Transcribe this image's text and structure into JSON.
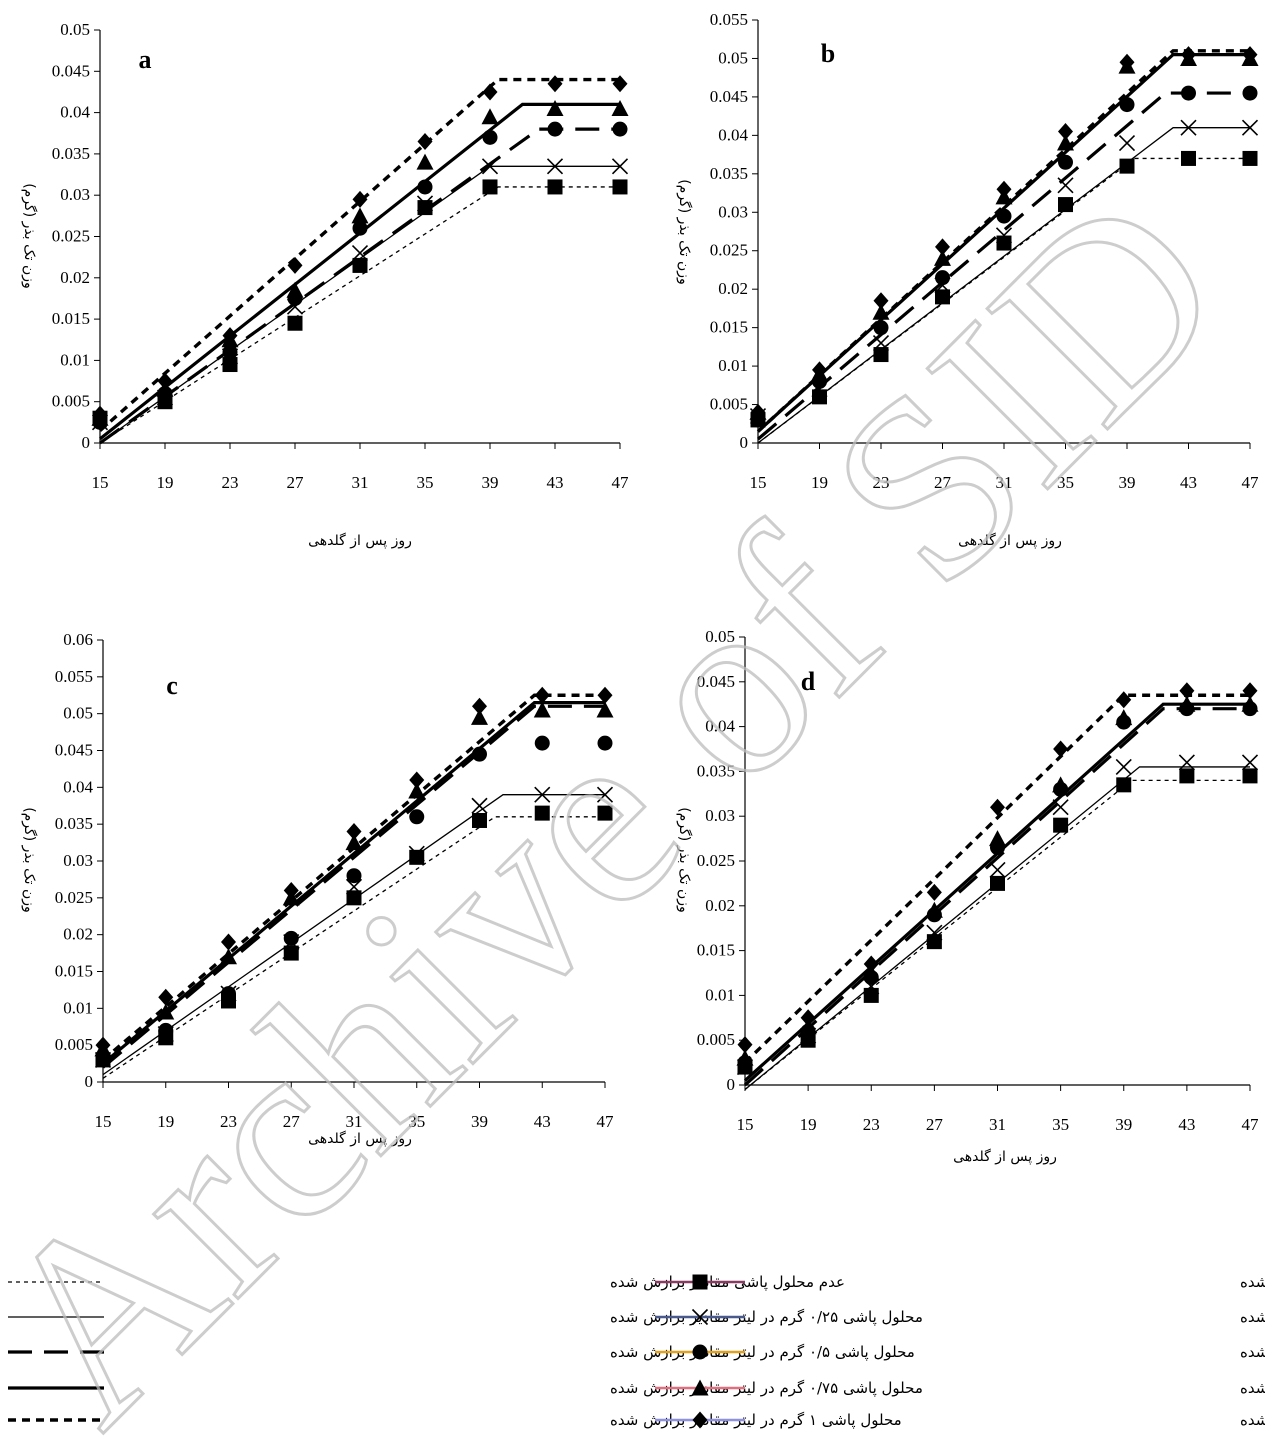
{
  "chart_data": [
    {
      "type": "line",
      "panel": "a",
      "ylim": [
        0,
        0.05
      ],
      "yticks": [
        "0",
        "0.005",
        "0.01",
        "0.015",
        "0.02",
        "0.025",
        "0.03",
        "0.035",
        "0.04",
        "0.045",
        "0.05"
      ],
      "x": [
        15,
        19,
        23,
        27,
        31,
        35,
        39,
        43,
        47
      ],
      "xticks": [
        "15",
        "19",
        "23",
        "27",
        "31",
        "35",
        "39",
        "43",
        "47"
      ],
      "xlabel": "روز پس از گلدهی",
      "ylabel": "وزن تک بذر (گرم)",
      "observed": [
        {
          "treatment": 0,
          "y": [
            0.003,
            0.005,
            0.0095,
            0.0145,
            0.0215,
            0.0285,
            0.031,
            0.031,
            0.031
          ]
        },
        {
          "treatment": 0.25,
          "y": [
            0.0025,
            0.0055,
            0.0105,
            0.0165,
            0.023,
            0.029,
            0.0335,
            0.0335,
            0.0335
          ]
        },
        {
          "treatment": 0.5,
          "y": [
            0.0025,
            0.006,
            0.011,
            0.0175,
            0.026,
            0.031,
            0.037,
            0.038,
            0.038
          ]
        },
        {
          "treatment": 0.75,
          "y": [
            0.003,
            0.0065,
            0.0125,
            0.0185,
            0.0275,
            0.034,
            0.0395,
            0.0405,
            0.0405
          ]
        },
        {
          "treatment": 1,
          "y": [
            0.0035,
            0.0075,
            0.013,
            0.0215,
            0.0295,
            0.0365,
            0.0425,
            0.0435,
            0.0435
          ]
        }
      ],
      "fitted": [
        {
          "treatment": 0,
          "x": [
            15,
            39.5,
            47
          ],
          "y": [
            0.0,
            0.031,
            0.031
          ]
        },
        {
          "treatment": 0.25,
          "x": [
            15,
            39.0,
            47
          ],
          "y": [
            0.0,
            0.0335,
            0.0335
          ]
        },
        {
          "treatment": 0.5,
          "x": [
            15,
            42.0,
            47
          ],
          "y": [
            0.0,
            0.038,
            0.038
          ]
        },
        {
          "treatment": 0.75,
          "x": [
            15,
            41.0,
            47
          ],
          "y": [
            0.0005,
            0.041,
            0.041
          ]
        },
        {
          "treatment": 1,
          "x": [
            15,
            39.5,
            47
          ],
          "y": [
            0.0015,
            0.044,
            0.044
          ]
        }
      ]
    },
    {
      "type": "line",
      "panel": "b",
      "ylim": [
        0,
        0.055
      ],
      "yticks": [
        "0",
        "0.005",
        "0.01",
        "0.015",
        "0.02",
        "0.025",
        "0.03",
        "0.035",
        "0.04",
        "0.045",
        "0.05",
        "0.055"
      ],
      "x": [
        15,
        19,
        23,
        27,
        31,
        35,
        39,
        43,
        47
      ],
      "xticks": [
        "15",
        "19",
        "23",
        "27",
        "31",
        "35",
        "39",
        "43",
        "47"
      ],
      "xlabel": "روز پس از گلدهی",
      "ylabel": "وزن تک بذر (گرم)",
      "observed": [
        {
          "treatment": 0,
          "y": [
            0.003,
            0.006,
            0.0115,
            0.019,
            0.026,
            0.031,
            0.036,
            0.037,
            0.037
          ]
        },
        {
          "treatment": 0.25,
          "y": [
            0.0035,
            0.007,
            0.013,
            0.0205,
            0.027,
            0.0335,
            0.039,
            0.041,
            0.041
          ]
        },
        {
          "treatment": 0.5,
          "y": [
            0.003,
            0.008,
            0.015,
            0.0215,
            0.0295,
            0.0365,
            0.044,
            0.0455,
            0.0455
          ]
        },
        {
          "treatment": 0.75,
          "y": [
            0.004,
            0.009,
            0.017,
            0.024,
            0.032,
            0.039,
            0.049,
            0.05,
            0.05
          ]
        },
        {
          "treatment": 1,
          "y": [
            0.004,
            0.0095,
            0.0185,
            0.0255,
            0.033,
            0.0405,
            0.0495,
            0.0505,
            0.0505
          ]
        }
      ],
      "fitted": [
        {
          "treatment": 0,
          "x": [
            15,
            39.5,
            47
          ],
          "y": [
            0.0,
            0.037,
            0.037
          ]
        },
        {
          "treatment": 0.25,
          "x": [
            15,
            42.0,
            47
          ],
          "y": [
            0.0,
            0.041,
            0.041
          ]
        },
        {
          "treatment": 0.5,
          "x": [
            15,
            41.5,
            47
          ],
          "y": [
            0.0005,
            0.0455,
            0.0455
          ]
        },
        {
          "treatment": 0.75,
          "x": [
            15,
            42.0,
            47
          ],
          "y": [
            0.0015,
            0.0505,
            0.0505
          ]
        },
        {
          "treatment": 1,
          "x": [
            15,
            42.0,
            47
          ],
          "y": [
            0.0015,
            0.051,
            0.051
          ]
        }
      ]
    },
    {
      "type": "line",
      "panel": "c",
      "ylim": [
        0,
        0.06
      ],
      "yticks": [
        "0",
        "0.005",
        "0.01",
        "0.015",
        "0.02",
        "0.025",
        "0.03",
        "0.035",
        "0.04",
        "0.045",
        "0.05",
        "0.055",
        "0.06"
      ],
      "x": [
        15,
        19,
        23,
        27,
        31,
        35,
        39,
        43,
        47
      ],
      "xticks": [
        "15",
        "19",
        "23",
        "27",
        "31",
        "35",
        "39",
        "43",
        "47"
      ],
      "xlabel": "روز پس از گلدهی",
      "ylabel": "وزن تک بذر (گرم)",
      "observed": [
        {
          "treatment": 0,
          "y": [
            0.003,
            0.006,
            0.011,
            0.0175,
            0.025,
            0.0305,
            0.0355,
            0.0365,
            0.0365
          ]
        },
        {
          "treatment": 0.25,
          "y": [
            0.003,
            0.0065,
            0.012,
            0.019,
            0.0265,
            0.031,
            0.0375,
            0.039,
            0.039
          ]
        },
        {
          "treatment": 0.5,
          "y": [
            0.003,
            0.007,
            0.012,
            0.0195,
            0.028,
            0.036,
            0.0445,
            0.046,
            0.046
          ]
        },
        {
          "treatment": 0.75,
          "y": [
            0.0045,
            0.0095,
            0.017,
            0.025,
            0.0325,
            0.0395,
            0.0495,
            0.0505,
            0.0505
          ]
        },
        {
          "treatment": 1,
          "y": [
            0.005,
            0.0115,
            0.019,
            0.026,
            0.034,
            0.041,
            0.051,
            0.0525,
            0.0525
          ]
        }
      ],
      "fitted": [
        {
          "treatment": 0,
          "x": [
            15,
            40.0,
            47
          ],
          "y": [
            0.0005,
            0.036,
            0.036
          ]
        },
        {
          "treatment": 0.25,
          "x": [
            15,
            40.5,
            47
          ],
          "y": [
            0.001,
            0.039,
            0.039
          ]
        },
        {
          "treatment": 0.5,
          "x": [
            15,
            42.5,
            47
          ],
          "y": [
            0.002,
            0.051,
            0.051
          ]
        },
        {
          "treatment": 0.75,
          "x": [
            15,
            42.5,
            47
          ],
          "y": [
            0.0025,
            0.0515,
            0.0515
          ]
        },
        {
          "treatment": 1,
          "x": [
            15,
            42.5,
            47
          ],
          "y": [
            0.003,
            0.0525,
            0.0525
          ]
        }
      ]
    },
    {
      "type": "line",
      "panel": "d",
      "ylim": [
        0,
        0.05
      ],
      "yticks": [
        "0",
        "0.005",
        "0.01",
        "0.015",
        "0.02",
        "0.025",
        "0.03",
        "0.035",
        "0.04",
        "0.045",
        "0.05"
      ],
      "x": [
        15,
        19,
        23,
        27,
        31,
        35,
        39,
        43,
        47
      ],
      "xticks": [
        "15",
        "19",
        "23",
        "27",
        "31",
        "35",
        "39",
        "43",
        "47"
      ],
      "xlabel": "روز پس از گلدهی",
      "ylabel": "وزن تک بذر (گرم)",
      "observed": [
        {
          "treatment": 0,
          "y": [
            0.002,
            0.005,
            0.01,
            0.016,
            0.0225,
            0.029,
            0.0335,
            0.0345,
            0.0345
          ]
        },
        {
          "treatment": 0.25,
          "y": [
            0.002,
            0.0055,
            0.011,
            0.017,
            0.024,
            0.031,
            0.0355,
            0.036,
            0.036
          ]
        },
        {
          "treatment": 0.5,
          "y": [
            0.0025,
            0.006,
            0.012,
            0.019,
            0.0265,
            0.033,
            0.0405,
            0.042,
            0.042
          ]
        },
        {
          "treatment": 0.75,
          "y": [
            0.003,
            0.0065,
            0.0125,
            0.0195,
            0.0275,
            0.0335,
            0.041,
            0.0425,
            0.0425
          ]
        },
        {
          "treatment": 1,
          "y": [
            0.0045,
            0.0075,
            0.0135,
            0.0215,
            0.031,
            0.0375,
            0.043,
            0.044,
            0.044
          ]
        }
      ],
      "fitted": [
        {
          "treatment": 0,
          "x": [
            15,
            39.5,
            47
          ],
          "y": [
            -0.0005,
            0.034,
            0.034
          ]
        },
        {
          "treatment": 0.25,
          "x": [
            15,
            40.0,
            47
          ],
          "y": [
            -0.0005,
            0.0355,
            0.0355
          ]
        },
        {
          "treatment": 0.5,
          "x": [
            15,
            41.5,
            47
          ],
          "y": [
            0.0,
            0.042,
            0.042
          ]
        },
        {
          "treatment": 0.75,
          "x": [
            15,
            41.5,
            47
          ],
          "y": [
            0.0005,
            0.0425,
            0.0425
          ]
        },
        {
          "treatment": 1,
          "x": [
            15,
            39.0,
            47
          ],
          "y": [
            0.0025,
            0.0435,
            0.0435
          ]
        }
      ]
    }
  ],
  "legend": {
    "fitted": [
      {
        "treatment": 0,
        "label": "عدم محلول پاشی مقادیر برازش شده"
      },
      {
        "treatment": 0.25,
        "label": "محلول پاشی ۰/۲۵ گرم در لیتر مقادیر برازش شده"
      },
      {
        "treatment": 0.5,
        "label": "محلول پاشی ۰/۵ گرم در لیتر مقادیر برازش شده"
      },
      {
        "treatment": 0.75,
        "label": "محلول پاشی ۰/۷۵ گرم در لیتر مقادیر برازش شده"
      },
      {
        "treatment": 1,
        "label": "محلول پاشی ۱ گرم در لیتر مقادیر برازش شده"
      }
    ],
    "observed": [
      {
        "treatment": 0,
        "label": "عدم محلول پاشی مقادیر مشاهده شده",
        "marker": "square-icon",
        "color": "#8b3a62"
      },
      {
        "treatment": 0.25,
        "label": "محلول پاشی ۰/۲۵ گرم در لیتر مقادیر مشاهده شده",
        "marker": "cross-icon",
        "color": "#4a5a8c"
      },
      {
        "treatment": 0.5,
        "label": "محلول پاشی ۰/۵ گرم در لیتر مقادیر مشاهده شده",
        "marker": "circle-icon",
        "color": "#e0a020"
      },
      {
        "treatment": 0.75,
        "label": "محلول پاشی ۰/۷۵ گرم در لیتر مقادیر مشاهده شده",
        "marker": "triangle-icon",
        "color": "#e07080"
      },
      {
        "treatment": 1,
        "label": "محلول پاشی ۱ گرم در لیتر مقادیر مشاهده شده",
        "marker": "diamond-icon",
        "color": "#9090e0"
      }
    ]
  },
  "watermark": "Archive of SID"
}
